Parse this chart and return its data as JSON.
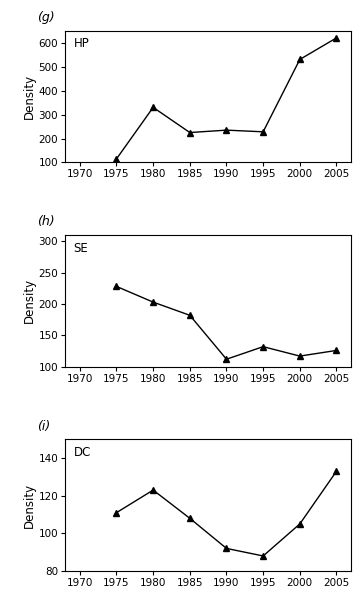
{
  "subplots": [
    {
      "label": "(g)",
      "legend": "HP",
      "x": [
        1975,
        1980,
        1985,
        1990,
        1995,
        2000,
        2005
      ],
      "y": [
        115,
        330,
        225,
        235,
        228,
        530,
        620
      ],
      "ylim": [
        100,
        650
      ],
      "yticks": [
        100,
        200,
        300,
        400,
        500,
        600
      ],
      "ylabel": "Density"
    },
    {
      "label": "(h)",
      "legend": "SE",
      "x": [
        1975,
        1980,
        1985,
        1990,
        1995,
        2000,
        2005
      ],
      "y": [
        228,
        203,
        182,
        112,
        132,
        117,
        126
      ],
      "ylim": [
        100,
        310
      ],
      "yticks": [
        100,
        150,
        200,
        250,
        300
      ],
      "ylabel": "Density"
    },
    {
      "label": "(i)",
      "legend": "DC",
      "x": [
        1975,
        1980,
        1985,
        1990,
        1995,
        2000,
        2005
      ],
      "y": [
        111,
        123,
        108,
        92,
        88,
        105,
        133
      ],
      "ylim": [
        80,
        150
      ],
      "yticks": [
        80,
        100,
        120,
        140
      ],
      "ylabel": "Density"
    }
  ],
  "xticks": [
    1970,
    1975,
    1980,
    1985,
    1990,
    1995,
    2000,
    2005
  ],
  "xlim": [
    1968,
    2007
  ],
  "line_color": "black",
  "marker": "^",
  "markersize": 4,
  "linewidth": 1.0,
  "label_fontsize": 9,
  "tick_fontsize": 7.5,
  "legend_fontsize": 8.5,
  "ylabel_fontsize": 8.5
}
